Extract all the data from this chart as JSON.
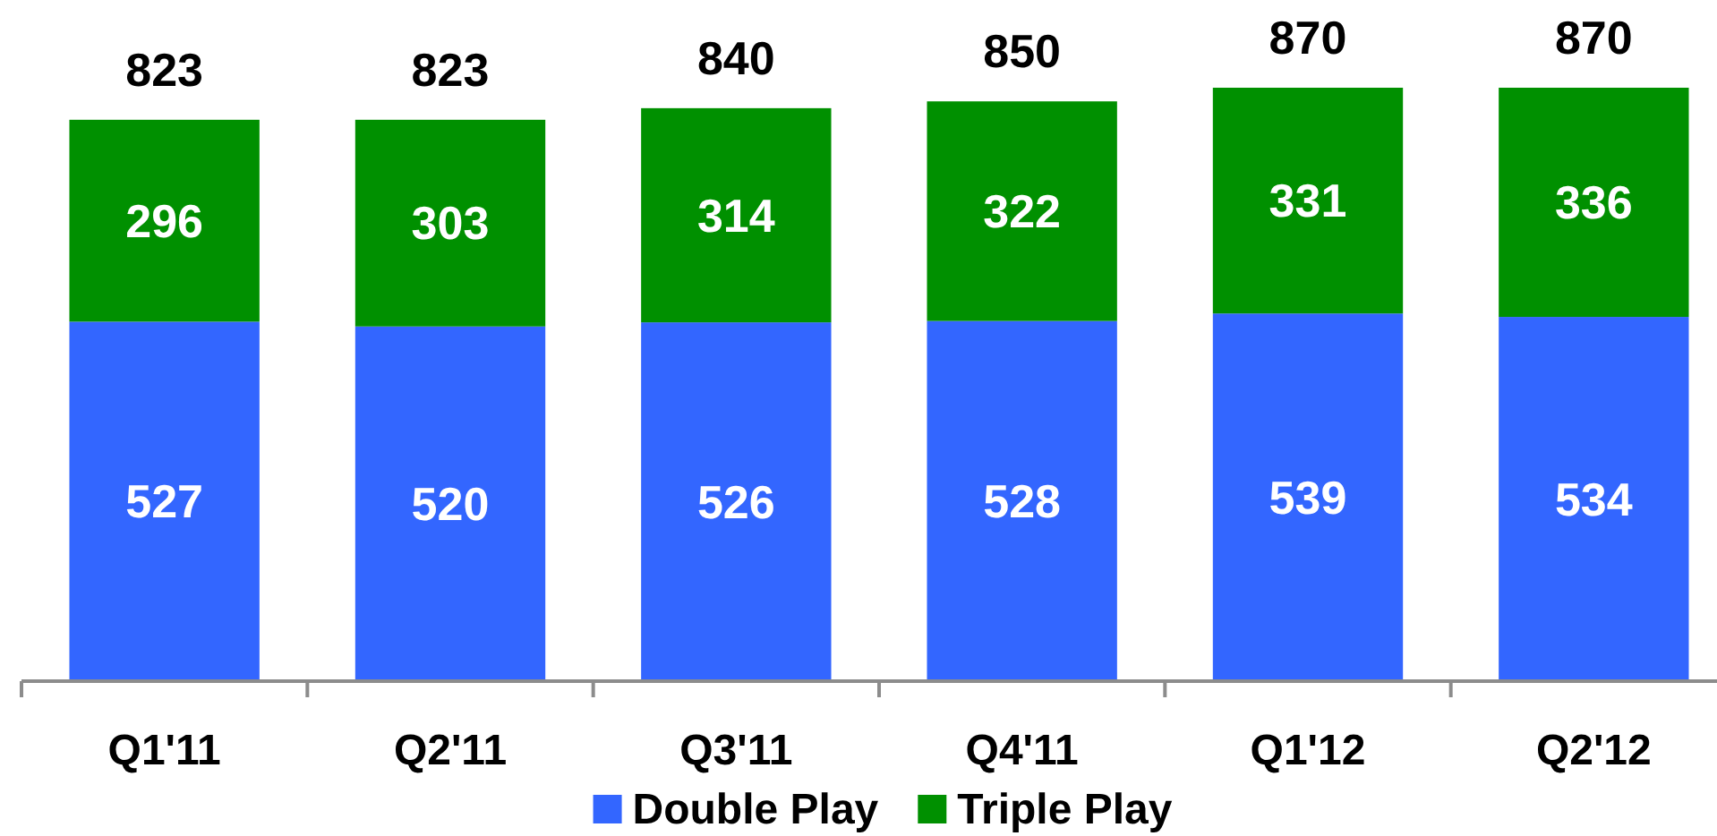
{
  "chart_data": {
    "type": "bar",
    "stacked": true,
    "categories": [
      "Q1'11",
      "Q2'11",
      "Q3'11",
      "Q4'11",
      "Q1'12",
      "Q2'12"
    ],
    "series": [
      {
        "name": "Double Play",
        "color": "#3366ff",
        "values": [
          527,
          520,
          526,
          528,
          539,
          534
        ]
      },
      {
        "name": "Triple Play",
        "color": "#009000",
        "values": [
          296,
          303,
          314,
          322,
          331,
          336
        ]
      }
    ],
    "data_labels": true,
    "totals": [
      "823",
      "823",
      "840",
      "850",
      "870",
      "870"
    ],
    "legend": "bottom"
  }
}
